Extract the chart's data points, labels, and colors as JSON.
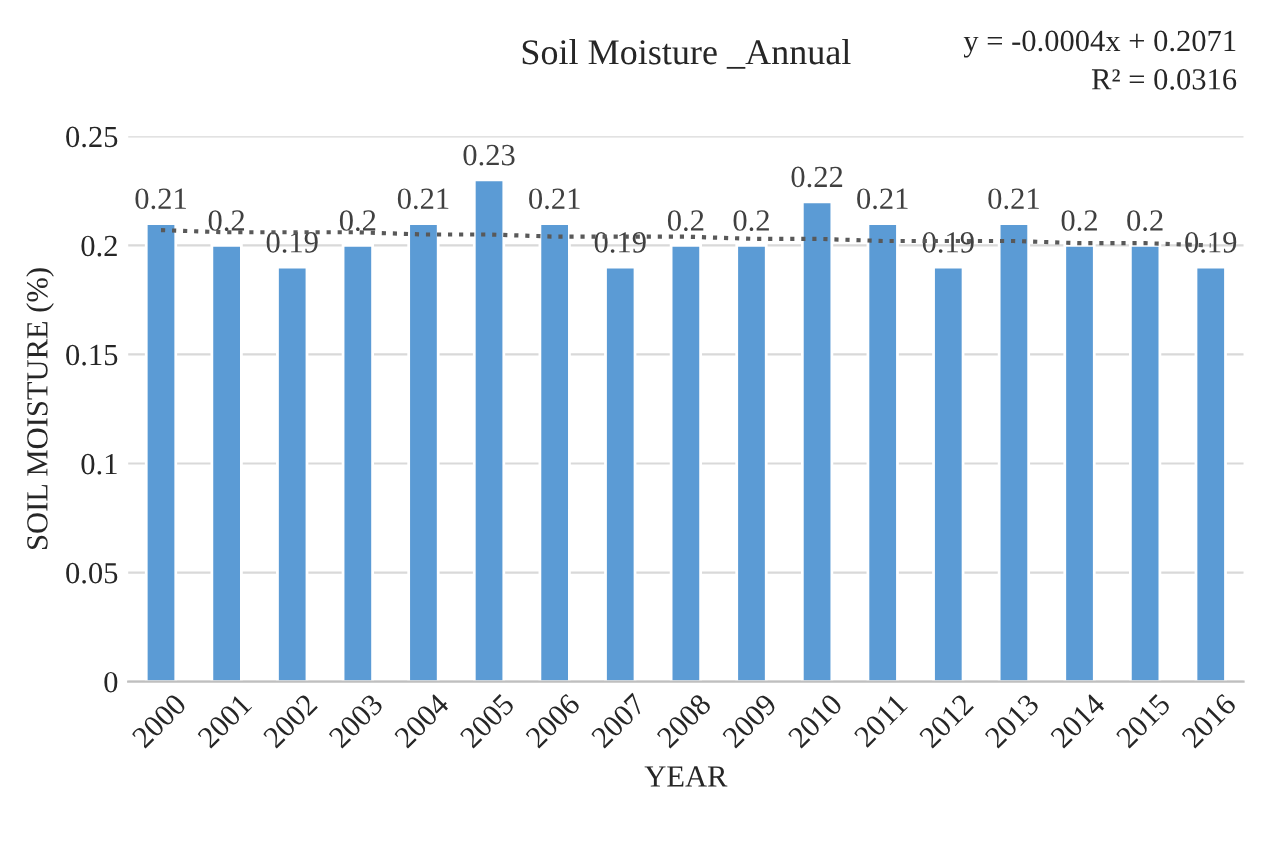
{
  "chart_data": {
    "type": "bar",
    "title": "Soil Moisture _Annual",
    "xlabel": "YEAR",
    "ylabel": "SOIL MOISTURE (%)",
    "categories": [
      "2000",
      "2001",
      "2002",
      "2003",
      "2004",
      "2005",
      "2006",
      "2007",
      "2008",
      "2009",
      "2010",
      "2011",
      "2012",
      "2013",
      "2014",
      "2015",
      "2016"
    ],
    "series": [
      {
        "color": "#5b9bd5",
        "values": [
          0.21,
          0.2,
          0.19,
          0.2,
          0.21,
          0.23,
          0.21,
          0.19,
          0.2,
          0.2,
          0.22,
          0.21,
          0.19,
          0.21,
          0.2,
          0.2,
          0.19
        ],
        "value_labels": [
          "0.21",
          "0.2",
          "0.19",
          "0.2",
          "0.21",
          "0.23",
          "0.21",
          "0.19",
          "0.2",
          "0.2",
          "0.22",
          "0.21",
          "0.19",
          "0.21",
          "0.2",
          "0.2",
          "0.19"
        ]
      },
      {
        "type": "line",
        "color": "#595959",
        "line_style": "dotted",
        "values": [
          0.207,
          0.206,
          0.206,
          0.206,
          0.205,
          0.205,
          0.204,
          0.204,
          0.204,
          0.203,
          0.203,
          0.202,
          0.202,
          0.202,
          0.201,
          0.201,
          0.2
        ]
      }
    ],
    "annotations": [
      "y = -0.0004x + 0.2071",
      "R² = 0.0316"
    ],
    "ylim": [
      0,
      0.25
    ],
    "yticks": [
      0,
      0.05,
      0.1,
      0.15,
      0.2,
      0.25
    ],
    "grid": "y",
    "legend": false
  }
}
